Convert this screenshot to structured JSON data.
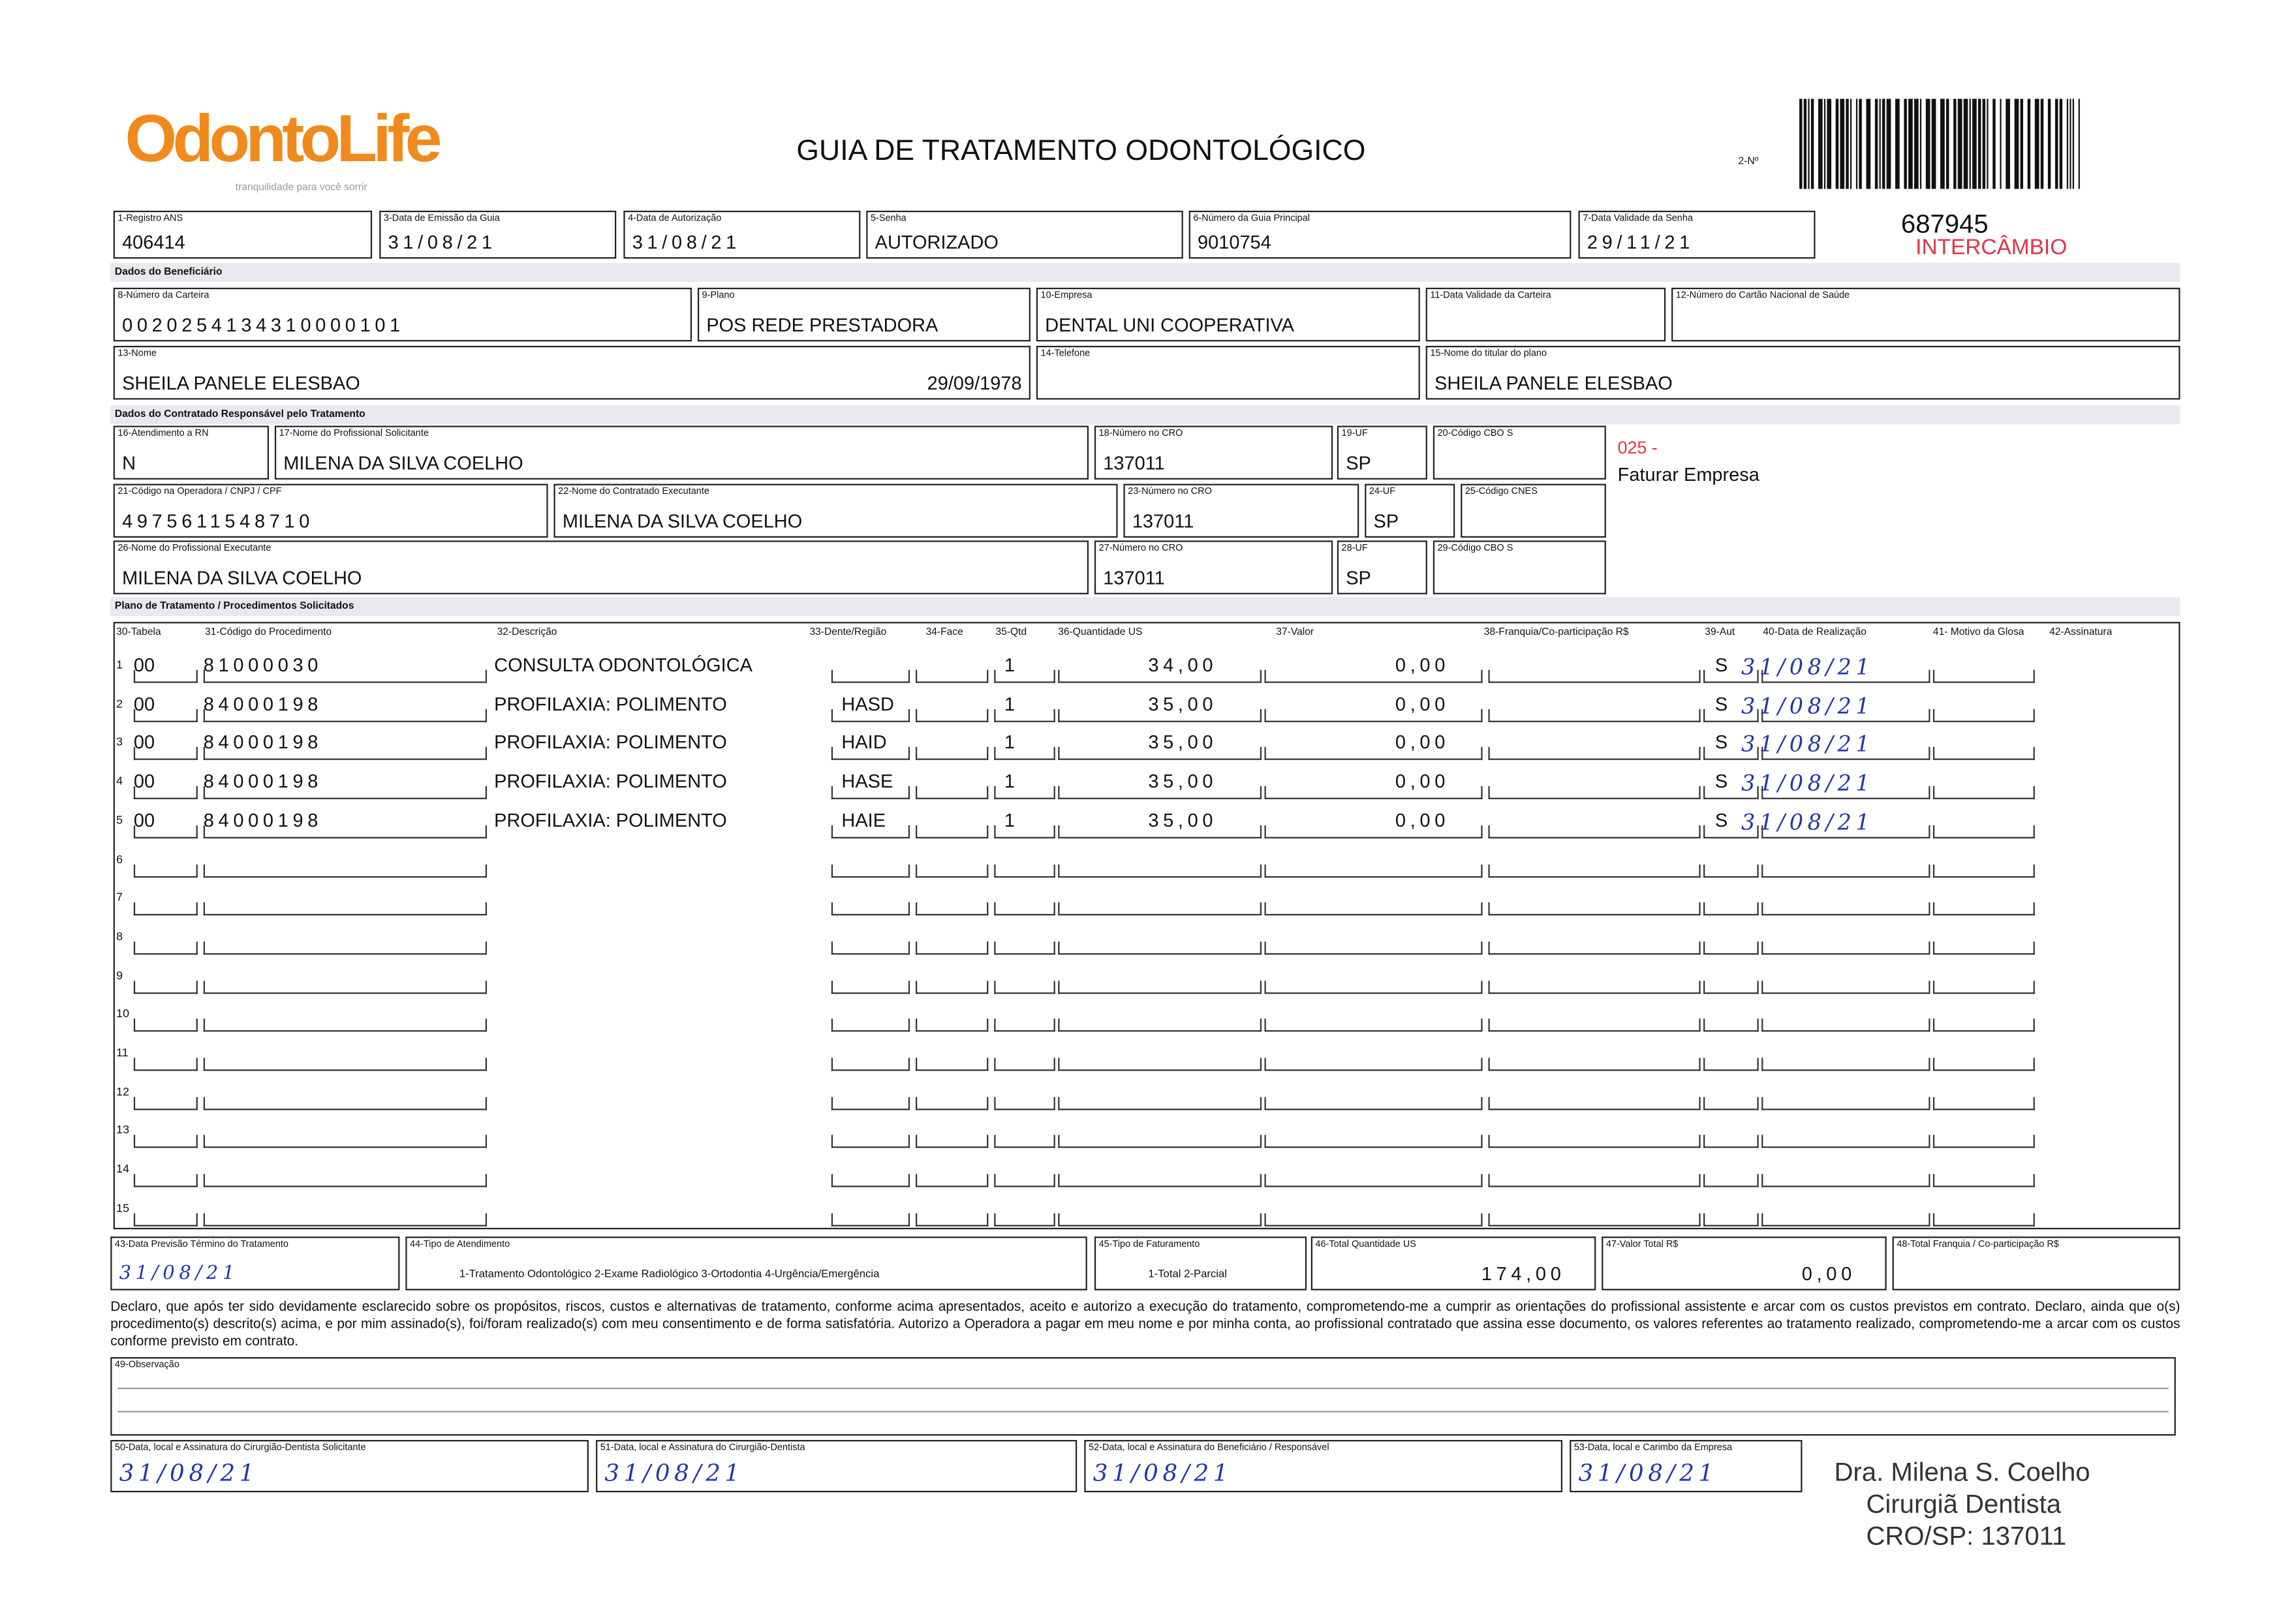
{
  "header": {
    "logo": "OdontoLife",
    "tagline": "tranquilidade para você sorrir",
    "title": "GUIA DE TRATAMENTO ODONTOLÓGICO",
    "number_label": "2-Nº",
    "number": "687945",
    "exchange": "INTERCÂMBIO"
  },
  "fields": [
    {
      "label": "1-Registro ANS",
      "value": "406414"
    },
    {
      "label": "3-Data de Emissão da Guia",
      "value": "31/08/21"
    },
    {
      "label": "4-Data de Autorização",
      "value": "31/08/21"
    },
    {
      "label": "5-Senha",
      "value": "AUTORIZADO"
    },
    {
      "label": "6-Número da Guia Principal",
      "value": "9010754"
    },
    {
      "label": "7-Data Validade da Senha",
      "value": "29/11/21"
    },
    {
      "label": "8-Número da Carteira",
      "value": "0020254134310000101"
    },
    {
      "label": "9-Plano",
      "value": "POS REDE PRESTADORA"
    },
    {
      "label": "10-Empresa",
      "value": "DENTAL UNI COOPERATIVA"
    },
    {
      "label": "11-Data Validade da Carteira"
    },
    {
      "label": "12-Número do Cartão Nacional de Saúde"
    },
    {
      "label": "13-Nome",
      "value": "SHEILA PANELE ELESBAO",
      "extra": "29/09/1978"
    },
    {
      "label": "14-Telefone"
    },
    {
      "label": "15-Nome do titular do plano",
      "value": "SHEILA PANELE ELESBAO"
    },
    {
      "label": "16-Atendimento a RN",
      "value": "N"
    },
    {
      "label": "17-Nome do Profissional Solicitante",
      "value": "MILENA DA SILVA COELHO"
    },
    {
      "label": "18-Número no CRO",
      "value": "137011"
    },
    {
      "label": "19-UF",
      "value": "SP"
    },
    {
      "label": "20-Código CBO S"
    },
    {
      "label": "21-Código na Operadora / CNPJ / CPF",
      "value": "4975611548710"
    },
    {
      "label": "22-Nome do Contratado Executante",
      "value": "MILENA DA SILVA COELHO"
    },
    {
      "label": "23-Número no CRO",
      "value": "137011"
    },
    {
      "label": "24-UF",
      "value": "SP"
    },
    {
      "label": "25-Código CNES"
    },
    {
      "label": "26-Nome do Profissional Executante",
      "value": "MILENA DA SILVA COELHO"
    },
    {
      "label": "27-Número no CRO",
      "value": "137011"
    },
    {
      "label": "28-UF",
      "value": "SP"
    },
    {
      "label": "29-Código CBO S"
    }
  ],
  "billing": {
    "code": "025 -",
    "text": "Faturar Empresa"
  },
  "sections": [
    "Dados do Beneficiário",
    "Dados do Contratado Responsável pelo Tratamento",
    "Plano de Tratamento / Procedimentos Solicitados"
  ],
  "table": {
    "headers": [
      "30-Tabela",
      "31-Código do Procedimento",
      "32-Descrição",
      "33-Dente/Região",
      "34-Face",
      "35-Qtd",
      "36-Quantidade US",
      "37-Valor",
      "38-Franquia/Co-participação R$",
      "39-Aut",
      "40-Data de Realização",
      "41- Motivo da Glosa",
      "42-Assinatura"
    ],
    "rows": [
      {
        "number": "1",
        "table": "00",
        "code": "81000030",
        "description": "CONSULTA ODONTOLÓGICA",
        "qty": "1",
        "us": "34,00",
        "value": "0,00",
        "aut": "S",
        "date": "31/08/21"
      },
      {
        "number": "2",
        "table": "00",
        "code": "84000198",
        "description": "PROFILAXIA: POLIMENTO",
        "tooth": "HASD",
        "qty": "1",
        "us": "35,00",
        "value": "0,00",
        "aut": "S",
        "date": "31/08/21"
      },
      {
        "number": "3",
        "table": "00",
        "code": "84000198",
        "description": "PROFILAXIA: POLIMENTO",
        "tooth": "HAID",
        "qty": "1",
        "us": "35,00",
        "value": "0,00",
        "aut": "S",
        "date": "31/08/21"
      },
      {
        "number": "4",
        "table": "00",
        "code": "84000198",
        "description": "PROFILAXIA: POLIMENTO",
        "tooth": "HASE",
        "qty": "1",
        "us": "35,00",
        "value": "0,00",
        "aut": "S",
        "date": "31/08/21"
      },
      {
        "number": "5",
        "table": "00",
        "code": "84000198",
        "description": "PROFILAXIA: POLIMENTO",
        "tooth": "HAIE",
        "qty": "1",
        "us": "35,00",
        "value": "0,00",
        "aut": "S",
        "date": "31/08/21"
      },
      {
        "number": "6"
      },
      {
        "number": "7"
      },
      {
        "number": "8"
      },
      {
        "number": "9"
      },
      {
        "number": "10"
      },
      {
        "number": "11"
      },
      {
        "number": "12"
      },
      {
        "number": "13"
      },
      {
        "number": "14"
      },
      {
        "number": "15"
      }
    ]
  },
  "footer": [
    {
      "label": "43-Data Previsão Término do Tratamento",
      "value": "31/08/21"
    },
    {
      "label": "44-Tipo de Atendimento",
      "value": "1-Tratamento Odontológico 2-Exame Radiológico 3-Ortodontia 4-Urgência/Emergência"
    },
    {
      "label": "45-Tipo de Faturamento",
      "value": "1-Total 2-Parcial"
    },
    {
      "label": "46-Total Quantidade US",
      "value": "174,00"
    },
    {
      "label": "47-Valor Total R$",
      "value": "0,00"
    },
    {
      "label": "48-Total Franquia / Co-participação R$"
    }
  ],
  "declaration": "Declaro, que após ter sido devidamente esclarecido sobre os propósitos, riscos, custos e alternativas de tratamento, conforme acima apresentados, aceito e autorizo a execução do tratamento, comprometendo-me a cumprir as orientações do profissional assistente e arcar com os custos previstos em contrato. Declaro, ainda que o(s) procedimento(s) descrito(s) acima, e por mim assinado(s), foi/foram realizado(s) com meu consentimento e de forma satisfatória. Autorizo a Operadora a pagar em meu nome e por minha conta, ao profissional contratado que assina esse documento, os valores referentes ao tratamento realizado, comprometendo-me a arcar com os custos conforme previsto em contrato.",
  "observation": {
    "label": "49-Observação"
  },
  "signatures": [
    {
      "label": "50-Data, local e Assinatura do Cirurgião-Dentista Solicitante",
      "value": "31/08/21"
    },
    {
      "label": "51-Data, local e Assinatura do Cirurgião-Dentista",
      "value": "31/08/21"
    },
    {
      "label": "52-Data, local e Assinatura do Beneficiário / Responsável",
      "value": "31/08/21"
    },
    {
      "label": "53-Data, local e Carimbo da Empresa",
      "value": "31/08/21"
    }
  ],
  "stamp": [
    "Dra. Milena S. Coelho",
    "Cirurgiã Dentista",
    "CRO/SP: 137011"
  ]
}
